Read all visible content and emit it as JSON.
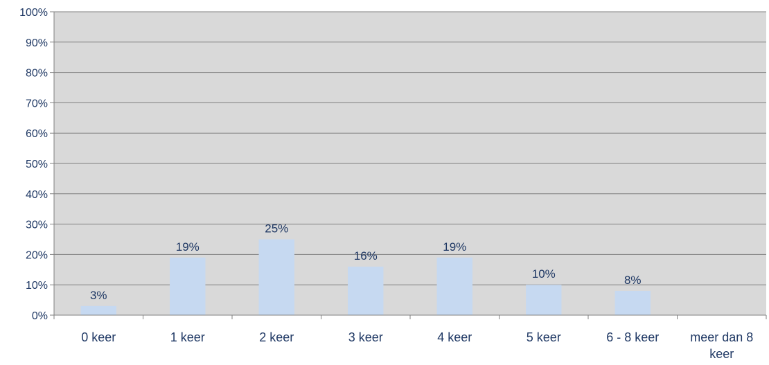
{
  "chart_data": {
    "type": "bar",
    "categories": [
      "0 keer",
      "1 keer",
      "2 keer",
      "3 keer",
      "4 keer",
      "5 keer",
      "6 - 8 keer",
      "meer dan 8 keer"
    ],
    "category_lines": [
      [
        "0 keer"
      ],
      [
        "1 keer"
      ],
      [
        "2 keer"
      ],
      [
        "3 keer"
      ],
      [
        "4 keer"
      ],
      [
        "5 keer"
      ],
      [
        "6 - 8 keer"
      ],
      [
        "meer dan 8",
        "keer"
      ]
    ],
    "values": [
      3,
      19,
      25,
      16,
      19,
      10,
      8,
      0
    ],
    "data_labels": [
      "3%",
      "19%",
      "25%",
      "16%",
      "19%",
      "10%",
      "8%",
      ""
    ],
    "ylim": [
      0,
      100
    ],
    "yticks": [
      0,
      10,
      20,
      30,
      40,
      50,
      60,
      70,
      80,
      90,
      100
    ],
    "ytick_labels": [
      "0%",
      "10%",
      "20%",
      "30%",
      "40%",
      "50%",
      "60%",
      "70%",
      "80%",
      "90%",
      "100%"
    ],
    "grid": true,
    "legend": "none",
    "title": "",
    "xlabel": "",
    "ylabel": "",
    "colors": {
      "bar": "#c6d9f1",
      "plot_background": "#d9d9d9",
      "gridline": "#7f7f7f",
      "text": "#1f3864"
    }
  }
}
